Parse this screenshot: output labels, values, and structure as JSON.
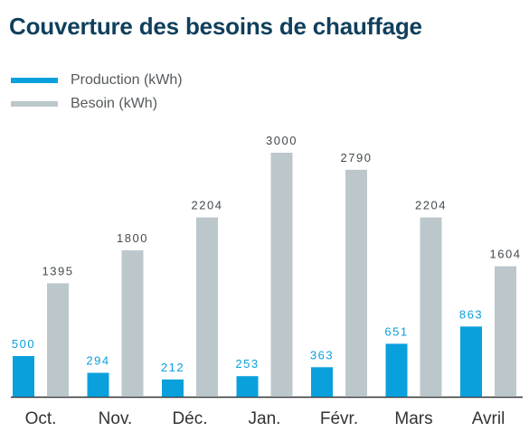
{
  "title": "Couverture des besoins de chauffage",
  "colors": {
    "production": "#0aa0dc",
    "besoin": "#bcc7cc",
    "title": "#0f3f5c"
  },
  "chart_data": {
    "type": "bar",
    "categories": [
      "Oct.",
      "Nov.",
      "Déc.",
      "Jan.",
      "Févr.",
      "Mars",
      "Avril"
    ],
    "series": [
      {
        "name": "Production (kWh)",
        "values": [
          500,
          294,
          212,
          253,
          363,
          651,
          863
        ]
      },
      {
        "name": "Besoin (kWh)",
        "values": [
          1395,
          1800,
          2204,
          3000,
          2790,
          2204,
          1604
        ]
      }
    ],
    "ylim": [
      0,
      3000
    ],
    "grid": false,
    "legend": "top-left"
  }
}
